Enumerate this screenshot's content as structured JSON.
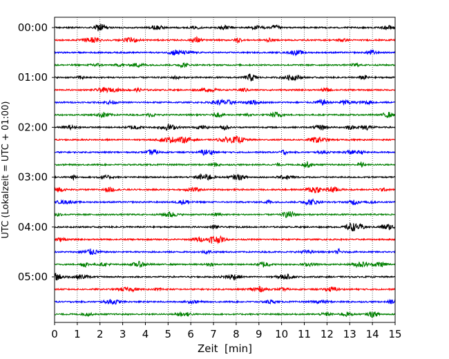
{
  "chart_data": {
    "type": "line",
    "title": "",
    "xlabel": "Zeit  [min]",
    "ylabel": "UTC (Lokalzeit = UTC + 01:00)",
    "xlim": [
      0,
      15
    ],
    "x_ticks": [
      "0",
      "1",
      "2",
      "3",
      "4",
      "5",
      "6",
      "7",
      "8",
      "9",
      "10",
      "11",
      "12",
      "13",
      "14",
      "15"
    ],
    "y_ticks": [
      "00:00",
      "01:00",
      "02:00",
      "03:00",
      "04:00",
      "05:00"
    ],
    "grid": "vertical dotted at each minute",
    "legend": "none",
    "trace_colors": [
      "#000000",
      "#ff0000",
      "#0000ff",
      "#008000"
    ],
    "trace_interval_minutes": 15,
    "series": [
      {
        "start": "00:00"
      },
      {
        "start": "00:15"
      },
      {
        "start": "00:30"
      },
      {
        "start": "00:45"
      },
      {
        "start": "01:00"
      },
      {
        "start": "01:15"
      },
      {
        "start": "01:30"
      },
      {
        "start": "01:45"
      },
      {
        "start": "02:00"
      },
      {
        "start": "02:15"
      },
      {
        "start": "02:30"
      },
      {
        "start": "02:45"
      },
      {
        "start": "03:00"
      },
      {
        "start": "03:15"
      },
      {
        "start": "03:30"
      },
      {
        "start": "03:45"
      },
      {
        "start": "04:00"
      },
      {
        "start": "04:15"
      },
      {
        "start": "04:30"
      },
      {
        "start": "04:45"
      },
      {
        "start": "05:00"
      },
      {
        "start": "05:15"
      },
      {
        "start": "05:30"
      },
      {
        "start": "05:45"
      }
    ]
  }
}
